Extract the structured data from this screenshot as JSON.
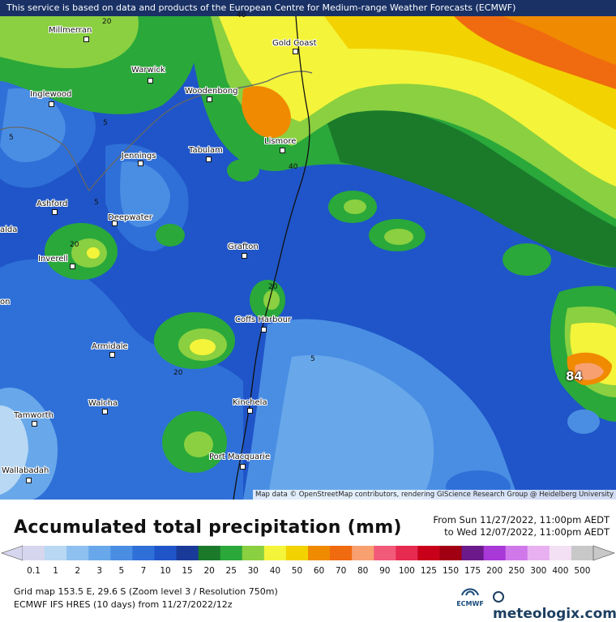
{
  "notice": "This service is based on data and products of the European Centre for Medium-range Weather Forecasts (ECMWF)",
  "attribution": "Map data © OpenStreetMap contributors, rendering GIScience Research Group @ Heidelberg University",
  "towns": [
    {
      "name": "Millmerran"
    },
    {
      "name": "Gold Coast"
    },
    {
      "name": "Warwick"
    },
    {
      "name": "Woodenbong"
    },
    {
      "name": "Inglewood"
    },
    {
      "name": "Lismore"
    },
    {
      "name": "Tabulam"
    },
    {
      "name": "Jennings"
    },
    {
      "name": "Ashford"
    },
    {
      "name": "Deepwater"
    },
    {
      "name": "Grafton"
    },
    {
      "name": "Inverell"
    },
    {
      "name": "Coffs Harbour"
    },
    {
      "name": "Armidale"
    },
    {
      "name": "Kinchela"
    },
    {
      "name": "Walcha"
    },
    {
      "name": "Tamworth"
    },
    {
      "name": "Port Macquarie"
    },
    {
      "name": "Wallabadah"
    },
    {
      "name": "alda"
    },
    {
      "name": "on"
    }
  ],
  "contour_labels": [
    "20",
    "40",
    "5",
    "5",
    "5",
    "40",
    "20",
    "20",
    "5",
    "20"
  ],
  "max_value": "84",
  "legend": {
    "title": "Accumulated total precipitation (mm)",
    "from": "From Sun 11/27/2022, 11:00pm AEDT",
    "to": "to Wed 12/07/2022, 11:00pm AEDT",
    "ticks": [
      "0.1",
      "1",
      "2",
      "3",
      "5",
      "7",
      "10",
      "15",
      "20",
      "25",
      "30",
      "40",
      "50",
      "60",
      "70",
      "80",
      "90",
      "100",
      "125",
      "150",
      "175",
      "200",
      "250",
      "300",
      "400",
      "500"
    ],
    "colors": [
      "#d6d6ee",
      "#b8d8f4",
      "#8ec0f0",
      "#68a8ea",
      "#4a8ee4",
      "#2f70d8",
      "#1f55c8",
      "#1a3a9a",
      "#1a7a2a",
      "#2aa83a",
      "#8ad040",
      "#f4f43a",
      "#f2d200",
      "#f08a00",
      "#f06a10",
      "#f8a070",
      "#f25a7a",
      "#e62a50",
      "#c8001a",
      "#a00012",
      "#6a1a8a",
      "#a838d8",
      "#d078ea",
      "#e8b0f0",
      "#f4e0f4",
      "#c8c8c8"
    ],
    "grid_info": "Grid map 153.5 E, 29.6 S (Zoom level 3 / Resolution 750m)",
    "model_info": "ECMWF IFS HRES (10 days) from 11/27/2022/12z",
    "ecmwf_label": "ECMWF",
    "brand": "meteologix.com"
  }
}
